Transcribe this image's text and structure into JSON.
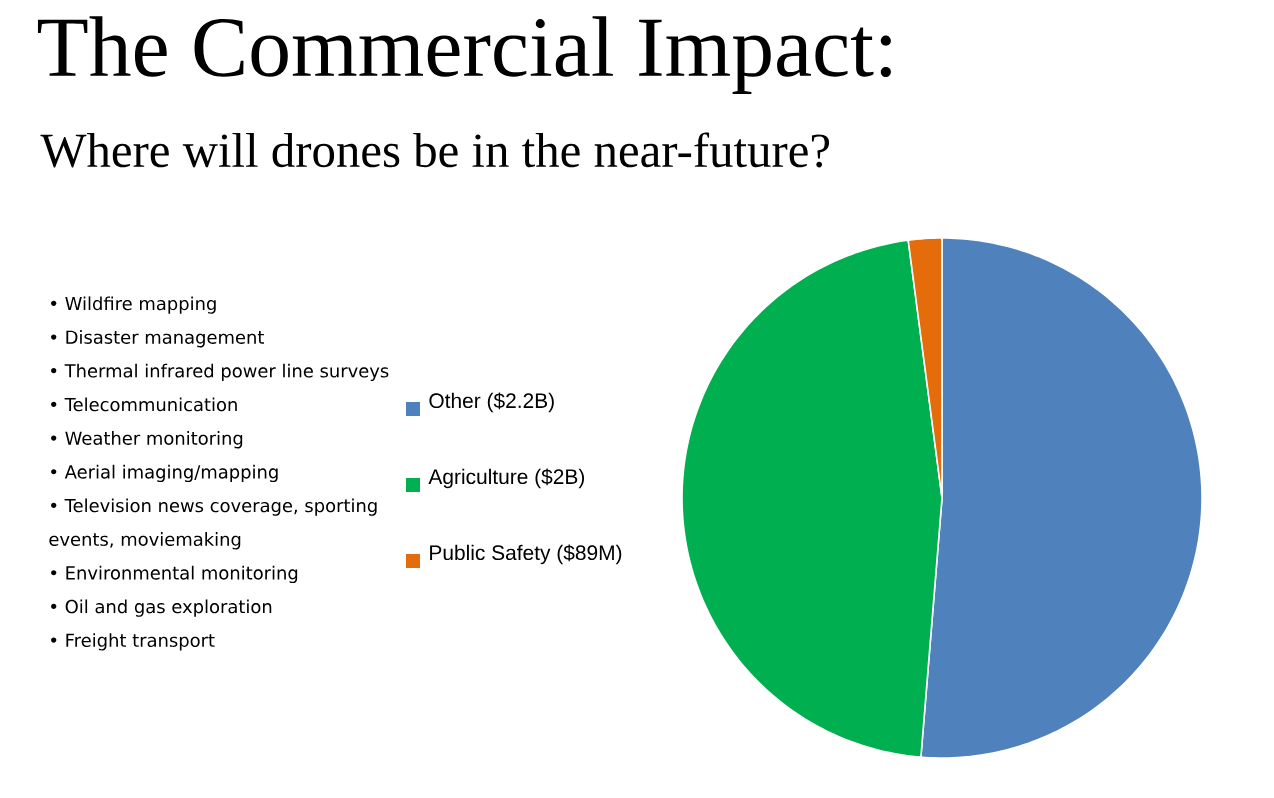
{
  "chart_data": {
    "type": "pie",
    "title": "The Commercial Impact:",
    "subtitle": "Where will drones be in the near-future?",
    "categories": [
      "Other ($2.2B)",
      "Agriculture ($2B)",
      "Public Safety ($89M)"
    ],
    "values": [
      2.2,
      2,
      0.089
    ],
    "colors": [
      "#4f81bd",
      "#00b050",
      "#e46c0a"
    ],
    "legend": "left",
    "annotations": [
      "• Wildfire mapping",
      "• Disaster management",
      "• Thermal infrared power line surveys",
      "• Telecommunication",
      "• Weather monitoring",
      "• Aerial imaging/mapping",
      "• Television news coverage, sporting events, moviemaking",
      "• Environmental monitoring",
      "• Oil and gas exploration",
      "• Freight transport"
    ]
  }
}
